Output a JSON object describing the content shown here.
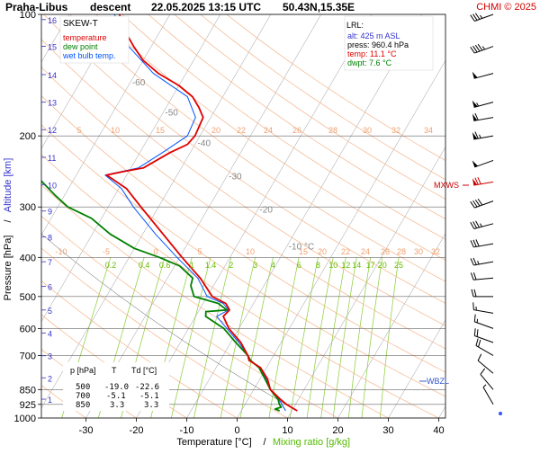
{
  "header": {
    "station": "Praha-Libus",
    "mode": "descent",
    "datetime": "22.05.2025 13:15 UTC",
    "coords": "50.43N,15.35E",
    "credit": "CHMI © 2025",
    "credit_color": "#d40000"
  },
  "legend": {
    "title": "SKEW-T",
    "items": [
      {
        "label": "temperature",
        "color": "#e00000"
      },
      {
        "label": "dew point",
        "color": "#008000"
      },
      {
        "label": "wet bulb temp.",
        "color": "#0055ff"
      }
    ]
  },
  "lrl": {
    "title": "LRL:",
    "lines": [
      {
        "text": "alt: 425 m ASL",
        "color": "#3333cc"
      },
      {
        "text": "press: 960.4 hPa",
        "color": "#000000"
      },
      {
        "text": "temp: 11.1 °C",
        "color": "#e00000"
      },
      {
        "text": "dwpt: 7.6 °C",
        "color": "#008000"
      }
    ]
  },
  "table": {
    "headers": [
      "p [hPa]",
      "T",
      "Td [°C]"
    ],
    "rows": [
      [
        "500",
        "-19.0",
        "-22.6"
      ],
      [
        "700",
        "-5.1",
        "-5.1"
      ],
      [
        "850",
        "3.3",
        "3.3"
      ]
    ]
  },
  "markers": {
    "mxws": "MXWS",
    "wbzl": "WBZL"
  },
  "chart_data": {
    "type": "line",
    "xlabel": "Temperature [°C]",
    "xlabel2": "Mixing ratio [g/kg]",
    "slash": "/",
    "ylabel": "Pressure [hPa]",
    "ylabel2": "Altitude [km]",
    "xlim": [
      -40,
      50
    ],
    "ylim": [
      1000,
      100
    ],
    "x_ticks": [
      -30,
      -20,
      -10,
      0,
      10,
      20,
      30,
      40
    ],
    "p_ticks": [
      100,
      200,
      300,
      400,
      500,
      600,
      700,
      850,
      925,
      1000
    ],
    "alt_ticks": [
      1,
      2,
      3,
      4,
      5,
      6,
      7,
      8,
      9,
      10,
      11,
      12,
      13,
      14,
      15,
      16
    ],
    "alt_pressures": [
      898,
      795,
      701,
      616,
      540,
      472,
      410,
      356,
      307,
      264,
      226,
      193,
      165,
      141,
      120,
      103
    ],
    "isotherm_labels": [
      "-80 °C",
      "-70",
      "-60",
      "-50",
      "-40",
      "-30",
      "-20",
      "-10 °C"
    ],
    "isotherm_values": [
      -80,
      -70,
      -60,
      -50,
      -40,
      -30,
      -20,
      -10
    ],
    "dry_adiabat_labels_200": [
      "5",
      "10",
      "15",
      "20",
      "22",
      "24",
      "26",
      "28",
      "30",
      "32",
      "34"
    ],
    "dry_adiabat_labels_400": [
      "-10",
      "-5",
      "0",
      "5",
      "10",
      "15",
      "20",
      "22",
      "24",
      "26",
      "28",
      "30",
      "32",
      "34"
    ],
    "mixing_ratio_labels": [
      "0.2",
      "0.4",
      "0.6",
      "1",
      "1.4",
      "2",
      "3",
      "4",
      "6",
      "8",
      "10",
      "12",
      "14",
      "17",
      "20",
      "25"
    ],
    "mixing_ratio_values": [
      0.2,
      0.4,
      0.6,
      1,
      1.4,
      2,
      3,
      4,
      6,
      8,
      10,
      12,
      14,
      17,
      20,
      25
    ],
    "series": [
      {
        "name": "temperature",
        "color": "#e00000",
        "points": [
          [
            960,
            11.1
          ],
          [
            925,
            8.2
          ],
          [
            900,
            6.5
          ],
          [
            850,
            3.3
          ],
          [
            800,
            1.5
          ],
          [
            750,
            -1.2
          ],
          [
            720,
            -4.3
          ],
          [
            700,
            -5.1
          ],
          [
            650,
            -8.0
          ],
          [
            600,
            -12.0
          ],
          [
            560,
            -14.5
          ],
          [
            540,
            -14.0
          ],
          [
            520,
            -15.5
          ],
          [
            500,
            -19.0
          ],
          [
            450,
            -23.5
          ],
          [
            400,
            -29.5
          ],
          [
            350,
            -36.0
          ],
          [
            300,
            -43.5
          ],
          [
            270,
            -48.5
          ],
          [
            250,
            -54.0
          ],
          [
            245,
            -51.0
          ],
          [
            240,
            -47.5
          ],
          [
            220,
            -44.0
          ],
          [
            210,
            -41.5
          ],
          [
            200,
            -41.0
          ],
          [
            180,
            -41.5
          ],
          [
            170,
            -43.5
          ],
          [
            160,
            -46.0
          ],
          [
            150,
            -50.0
          ],
          [
            140,
            -55.5
          ],
          [
            130,
            -60.0
          ],
          [
            120,
            -63.5
          ],
          [
            110,
            -67.0
          ],
          [
            100,
            -70.0
          ]
        ]
      },
      {
        "name": "dew point",
        "color": "#008000",
        "points": [
          [
            960,
            7.6
          ],
          [
            950,
            6.5
          ],
          [
            940,
            7.5
          ],
          [
            925,
            6.8
          ],
          [
            900,
            6.0
          ],
          [
            850,
            3.3
          ],
          [
            800,
            1.0
          ],
          [
            750,
            -1.5
          ],
          [
            720,
            -4.0
          ],
          [
            700,
            -5.1
          ],
          [
            650,
            -9.0
          ],
          [
            600,
            -13.0
          ],
          [
            560,
            -18.0
          ],
          [
            545,
            -18.5
          ],
          [
            540,
            -14.5
          ],
          [
            520,
            -17.0
          ],
          [
            500,
            -22.6
          ],
          [
            470,
            -24.5
          ],
          [
            450,
            -25.0
          ],
          [
            420,
            -29.0
          ],
          [
            400,
            -34.0
          ],
          [
            380,
            -40.0
          ],
          [
            350,
            -46.5
          ],
          [
            320,
            -52.0
          ],
          [
            300,
            -58.0
          ],
          [
            280,
            -62.0
          ],
          [
            260,
            -66.0
          ],
          [
            240,
            -70.0
          ],
          [
            220,
            -75.0
          ],
          [
            200,
            -79.5
          ],
          [
            185,
            -81.0
          ],
          [
            170,
            -81.5
          ],
          [
            155,
            -80.0
          ],
          [
            145,
            -79.0
          ],
          [
            135,
            -79.5
          ],
          [
            125,
            -81.5
          ],
          [
            115,
            -83.0
          ],
          [
            108,
            -84.5
          ],
          [
            100,
            -86.0
          ]
        ]
      },
      {
        "name": "wet bulb temp.",
        "color": "#0055ff",
        "points": [
          [
            960,
            8.8
          ],
          [
            925,
            7.3
          ],
          [
            900,
            6.2
          ],
          [
            850,
            3.3
          ],
          [
            800,
            1.2
          ],
          [
            750,
            -1.3
          ],
          [
            720,
            -4.1
          ],
          [
            700,
            -5.1
          ],
          [
            650,
            -8.4
          ],
          [
            600,
            -12.4
          ],
          [
            560,
            -15.8
          ],
          [
            540,
            -14.2
          ],
          [
            520,
            -16.0
          ],
          [
            500,
            -20.0
          ],
          [
            450,
            -24.0
          ],
          [
            400,
            -30.5
          ],
          [
            350,
            -37.5
          ],
          [
            300,
            -45.0
          ],
          [
            270,
            -49.5
          ],
          [
            250,
            -54.3
          ],
          [
            240,
            -48.5
          ],
          [
            220,
            -45.5
          ],
          [
            200,
            -42.5
          ],
          [
            180,
            -43.0
          ],
          [
            160,
            -47.0
          ],
          [
            140,
            -56.5
          ],
          [
            120,
            -64.5
          ],
          [
            100,
            -71.0
          ]
        ]
      }
    ],
    "wind_levels_hpa": [
      100,
      120,
      140,
      165,
      180,
      200,
      230,
      260,
      290,
      330,
      370,
      410,
      450,
      500,
      550,
      600,
      650,
      700,
      775,
      850,
      925
    ],
    "wind_speeds_kt": [
      35,
      45,
      50,
      55,
      60,
      65,
      50,
      70,
      40,
      35,
      30,
      25,
      20,
      20,
      15,
      15,
      20,
      20,
      10,
      10,
      5
    ],
    "wind_dirs_deg": [
      250,
      250,
      255,
      255,
      260,
      260,
      250,
      260,
      250,
      255,
      260,
      260,
      265,
      270,
      280,
      290,
      290,
      300,
      310,
      320,
      330
    ]
  }
}
